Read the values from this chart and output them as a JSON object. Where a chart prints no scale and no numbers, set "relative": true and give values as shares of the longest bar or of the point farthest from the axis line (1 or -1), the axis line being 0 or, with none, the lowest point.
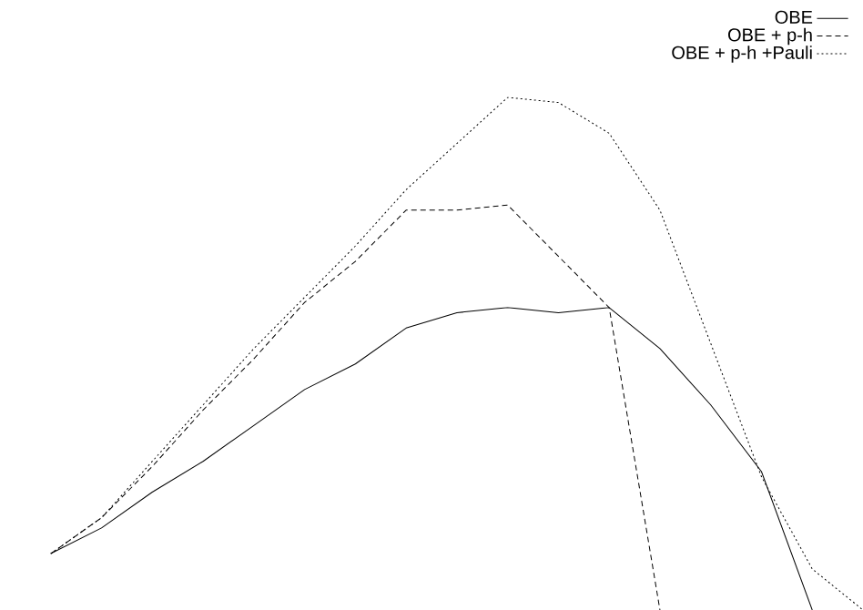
{
  "chart_data": {
    "type": "line",
    "relative": true,
    "legend": "top right",
    "marker": "none",
    "categories": [
      null,
      null,
      null,
      null,
      null,
      null,
      null,
      null,
      null,
      null,
      null,
      null,
      null,
      null,
      null,
      null,
      null
    ],
    "series": [
      {
        "name": "OBE",
        "color": "#000000",
        "line_style": "solid",
        "values": [
          0.11,
          0.16,
          0.23,
          0.29,
          0.36,
          0.43,
          0.48,
          0.55,
          0.58,
          0.59,
          0.58,
          0.59,
          0.51,
          0.4,
          0.27,
          0.0,
          null
        ]
      },
      {
        "name": "OBE + p-h",
        "color": "#000000",
        "line_style": "dashed",
        "values": [
          0.11,
          0.18,
          0.28,
          0.39,
          0.49,
          0.6,
          0.68,
          0.78,
          0.78,
          0.79,
          0.69,
          0.59,
          0.0,
          null,
          null,
          null,
          null
        ]
      },
      {
        "name": "OBE + p-h +Pauli",
        "color": "#000000",
        "line_style": "dotted",
        "values": [
          0.11,
          0.18,
          0.29,
          0.4,
          0.51,
          0.61,
          0.71,
          0.82,
          0.91,
          1.0,
          0.99,
          0.93,
          0.78,
          0.52,
          0.26,
          0.08,
          0.0
        ]
      }
    ]
  }
}
